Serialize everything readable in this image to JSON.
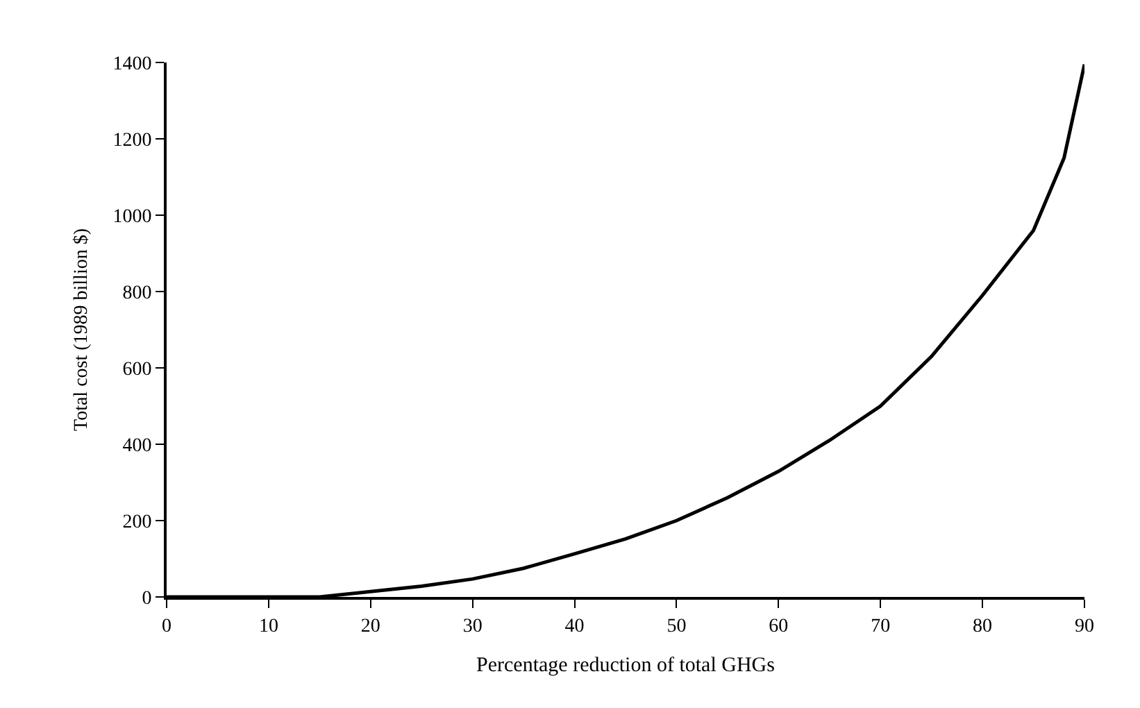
{
  "chart_data": {
    "type": "line",
    "xlabel": "Percentage reduction of total GHGs",
    "ylabel": "Total cost (1989 billion $)",
    "x": [
      0,
      10,
      15,
      20,
      25,
      30,
      35,
      40,
      45,
      50,
      55,
      60,
      65,
      70,
      75,
      80,
      85,
      88,
      90
    ],
    "series": [
      {
        "color": "#000000",
        "values": [
          0,
          0,
          0,
          14,
          28,
          47,
          75,
          113,
          152,
          200,
          260,
          329,
          410,
          500,
          630,
          790,
          960,
          1150,
          1395
        ]
      }
    ],
    "xlim": [
      0,
      90
    ],
    "xticks": [
      0,
      10,
      20,
      30,
      40,
      50,
      60,
      70,
      80,
      90
    ],
    "ylim": [
      0,
      1400
    ],
    "yticks": [
      0,
      200,
      400,
      600,
      800,
      1000,
      1200,
      1400
    ],
    "legend": false,
    "marker": "none",
    "line_style": "solid"
  }
}
